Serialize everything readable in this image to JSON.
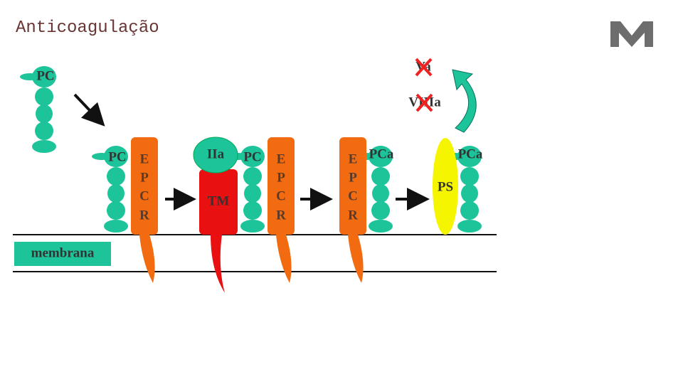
{
  "title": "Anticoagulação",
  "diagram": {
    "free_protein": "PC",
    "bound_proteins": [
      "PC",
      "PC",
      "PCa",
      "PCa"
    ],
    "receptors": [
      {
        "letters": [
          "E",
          "P",
          "C",
          "R"
        ]
      },
      {
        "letters": [
          "E",
          "P",
          "C",
          "R"
        ]
      },
      {
        "letters": [
          "E",
          "P",
          "C",
          "R"
        ]
      }
    ],
    "thrombin": "IIa",
    "thrombomodulin": "TM",
    "cofactor": "PS",
    "inactivated": [
      "Va",
      "VIIIa"
    ],
    "membrane": "membrana"
  }
}
